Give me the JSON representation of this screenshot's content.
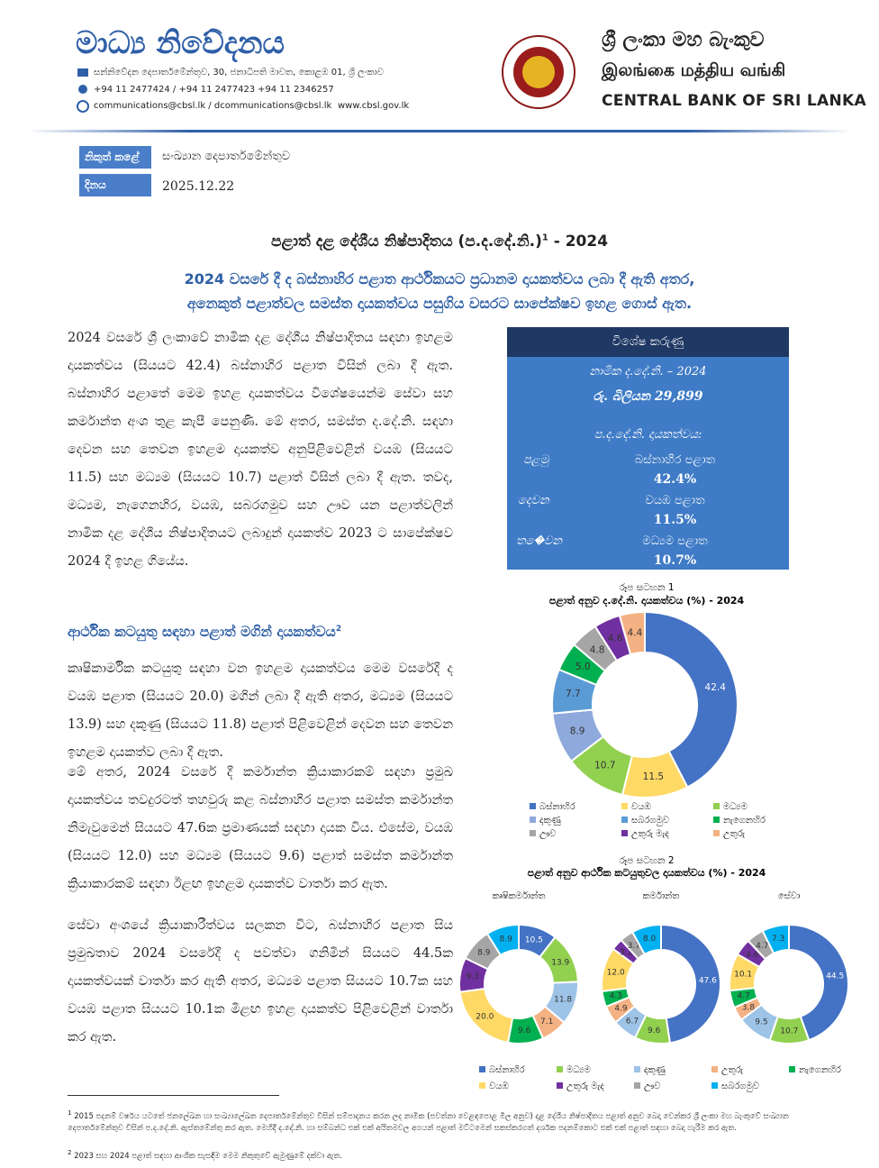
{
  "header": {
    "title": "මාධ්‍ය නිවේදනය",
    "address": "සන්නිවේදන දෙපාර්තමේන්තුව, 30, ජනාධිපති මාවත, කොළඹ 01, ශ්‍රී ලංකාව",
    "phone": "+94 11 2477424 / +94 11 2477423",
    "fax": "+94 11  2346257",
    "email": "communications@cbsl.lk / dcommunications@cbsl.lk",
    "web": "www.cbsl.gov.lk",
    "bank_si": "ශ්‍රී ලංකා මහ බැංකුව",
    "bank_ta": "இலங்கை மத்திய வங்கி",
    "bank_en": "CENTRAL BANK OF SRI LANKA"
  },
  "meta": {
    "issued_by_label": "නිකුත් කළේ",
    "issued_by": "සංඛ්‍යාන දෙපාර්තමේන්තුව",
    "date_label": "දිනය",
    "date": "2025.12.22"
  },
  "title": "පළාත් දළ දේශීය නිෂ්පාදිතය (ප.ද.දේ.නි.)",
  "title_note": "1",
  "title_year": " - 2024",
  "subtitle": [
    "2024 වසරේ දී ද බස්නාහිර පළාත ආර්ථිකයට ප්‍රධානම දායකත්වය ලබා දී ඇති අතර,",
    "අනෙකුත් පළාත්වල සමස්ත දායකත්වය පසුගිය වසරට සාපේක්ෂව ඉහළ ගොස් ඇත."
  ],
  "paragraphs": [
    "2024 වසරේ ශ්‍රී ලංකාවේ නාමික දළ දේශීය නිෂ්පාදිතය සඳහා ඉහළම දායකත්වය (සියයට 42.4) බස්නාහිර පළාත විසින් ලබා දී ඇත. බස්නාහිර පළාතේ මෙම ඉහළ දායකත්වය විශේෂයෙන්ම සේවා සහ කර්මාන්ත අංශ තුළ කැපී පෙනුණි. මේ අතර, සමස්ත ද.දේ.නි. සඳහා දෙවන සහ තෙවන ඉහළම දායකත්ව අනුපිළිවෙළින් වයඹ (සියයට 11.5) සහ මධ්‍යම (සියයට 10.7) පළාත් විසින් ලබා දී ඇත. තවද, මධ්‍යම, නැගෙනහිර, වයඹ, සබරගමුව සහ ඌව යන පළාත්වලින් නාමික දළ දේශීය නිෂ්පාදිතයට ලබාදුන් දායකත්ව 2023 ට සාපේක්ෂව 2024 දී ඉහළ ගියේය."
  ],
  "section": {
    "heading": "ආර්ථික කටයුතු සඳහා පළාත් මගින් දායකත්වය",
    "note": "2",
    "paragraphs": [
      "කෘෂිකාර්මික කටයුතු සඳහා වන ඉහළම දායකත්වය මෙම වසරේදී ද වයඹ පළාත (සියයට 20.0) මගින් ලබා දී ඇති අතර, මධ්‍යම (සියයට 13.9) සහ දකුණු (සියයට 11.8) පළාත් පිළිවෙළින් දෙවන සහ තෙවන ඉහළම දායකත්ව ලබා දී ඇත.",
      "මේ අතර, 2024 වසරේ දී කර්මාන්ත ක්‍රියාකාරකම් සඳහා ප්‍රමුඛ දායකත්වය තවදුරටත් තහවුරු කළ බස්නාහිර පළාත සමස්ත කර්මාන්ත නිමැවුමෙන් සියයට 47.6ක ප්‍රමාණයක් සඳහා දායක විය. එසේම, වයඹ (සියයට 12.0) සහ මධ්‍යම (සියයට 9.6) පළාත් සමස්ත කර්මාන්ත ක්‍රියාකාරකම් සඳහා ඊළඟ ඉහළම දායකත්ව වාර්තා කර ඇත.",
      "සේවා අංශයේ ක්‍රියාකාරීත්වය සලකන විට, බස්නාහිර පළාත සිය ප්‍රමුඛතාව 2024 වසරේදී ද පවත්වා ගනිමින් සියයට 44.5ක දායකත්වයක් වාර්තා කර ඇති අතර, මධ්‍යම පළාත සියයට 10.7ක සහ වයඹ පළාත සියයට 10.1ක මීළඟ ඉහළ දායකත්ව පිළිවෙළින් වාර්තා කර ඇත."
    ]
  },
  "highlights": {
    "title": "විශේෂ කරුණු",
    "gdp_label": "නාමික ද.දේ.නි. – 2024",
    "gdp_value": "රු. බිලියන 29,899",
    "share_label": "ප.ද.දේ.නි. දායකත්වය:",
    "rows": [
      {
        "rank": "පළමු",
        "province": "බස්නාහිර පළාත",
        "share": "42.4%"
      },
      {
        "rank": "දෙවන",
        "province": "වයඹ පළාත",
        "share": "11.5%"
      },
      {
        "rank": "ත�ෙවන",
        "province": "මධ්‍යම පළාත",
        "share": "10.7%"
      }
    ]
  },
  "chart_data": [
    {
      "type": "pie",
      "label": "රූප සටහන 1",
      "title": "පළාත් අනුව ද.දේ.නි. දායකත්වය (%) - 2024",
      "categories": [
        "බස්නාහිර",
        "වයඹ",
        "මධ්‍යම",
        "දකුණු",
        "සබරගමුව",
        "නැගෙනහිර",
        "ඌව",
        "උතුරු මැද",
        "උතුරු"
      ],
      "colors": [
        "#4472c4",
        "#ffd966",
        "#92d050",
        "#8ea9db",
        "#5b9bd5",
        "#00b050",
        "#a5a5a5",
        "#7030a0",
        "#f4b183"
      ],
      "values": [
        42.4,
        11.5,
        10.7,
        8.9,
        7.7,
        5.0,
        4.8,
        4.6,
        4.4
      ],
      "value_labels": [
        "42.4",
        "11.5",
        "10.7",
        "8.9",
        "7.7",
        "5.0",
        "4.8",
        "4.6",
        "4.4"
      ]
    },
    {
      "type": "pie",
      "label": "රූප සටහන  2",
      "title": "පළාත් අනුව ආර්ථික කටයුතුවල දායකත්වය (%) - 2024",
      "categories": [
        "බස්නාහිර",
        "මධ්‍යම",
        "දකුණු",
        "උතුරු",
        "නැගෙනහිර",
        "වයඹ",
        "උතුරු මැද",
        "ඌව",
        "සබරගමුව"
      ],
      "colors": [
        "#4472c4",
        "#92d050",
        "#9dc3e6",
        "#f4b183",
        "#00b050",
        "#ffd966",
        "#7030a0",
        "#a5a5a5",
        "#00b0f0"
      ],
      "series": [
        {
          "name": "කෘෂිකර්මාන්ත",
          "values": [
            10.5,
            13.9,
            11.8,
            7.1,
            9.6,
            20.0,
            9.3,
            8.9,
            8.9
          ],
          "value_labels": [
            "10.5",
            "13.9",
            "11.8",
            "7.1",
            "9.6",
            "20.0",
            "9.3",
            "8.9",
            "8.9"
          ]
        },
        {
          "name": "කර්මාන්ත",
          "values": [
            47.6,
            9.6,
            6.7,
            4.9,
            4.3,
            12.0,
            3.2,
            3.7,
            8.0
          ],
          "value_labels": [
            "47.6",
            "9.6",
            "6.7",
            "4.9",
            "4.3",
            "12.0",
            "3.2",
            "3.7",
            "8.0"
          ]
        },
        {
          "name": "සේවා",
          "values": [
            44.5,
            10.7,
            9.5,
            3.8,
            4.7,
            10.1,
            4.6,
            4.7,
            7.3
          ],
          "value_labels": [
            "44.5",
            "10.7",
            "9.5",
            "3.8",
            "4.7",
            "10.1",
            "4.6",
            "4.7",
            "7.3"
          ]
        }
      ]
    }
  ],
  "footnotes": [
    {
      "mark": "1",
      "text": "2015 පදනම් වර්ෂය යටතේ ජනලේඛන හා සංඛ්‍යාලේඛන දෙපාර්තමේන්තුව විසින් සම්පාදනය කරන ලද නාමික (පවත්නා වෙළඳපොළ මිල අනුව) දළ දේශීය නිෂ්පාදිතය පළාත් අනුව බෙදා වෙන්කර ශ්‍රී ලංකා මහ බැංකුවේ සංඛ්‍යාන දෙපාර්තමේන්තුව විසින් ප.ද.දේ.නි. ඇස්තමේන්තු කර ඇත. මෙහිදී ද.දේ.නි. හා සම්බන්ධ එක් එක් අයිතමවල අගයන් පළාත් මට්ටමෙන් සකස්කරගත් දර්ශක පදනම්කොට එක් එක් පළාත් සඳහා බෙදා හැරීම කර ඇත."
    },
    {
      "mark": "2",
      "text": "2023 සහ 2024 පළාත් සඳහා ආංශික සැසඳීම මෙම නිකුතුවේ ඇමුණුමේ දක්වා ඇත."
    }
  ]
}
